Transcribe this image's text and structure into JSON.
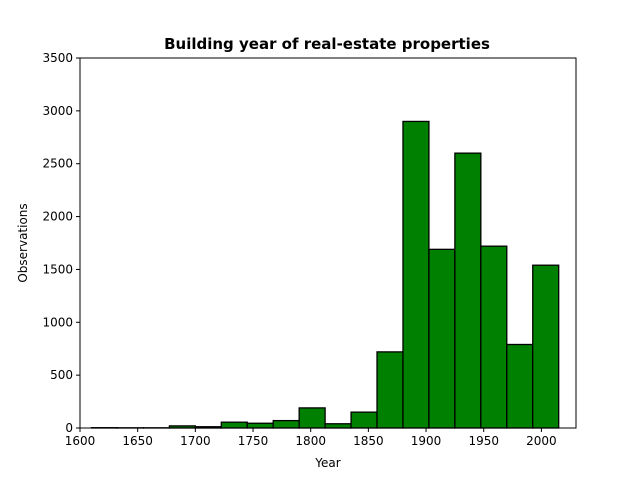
{
  "chart_data": {
    "type": "bar",
    "title": "Building year of real-estate properties",
    "xlabel": "Year",
    "ylabel": "Observations",
    "xlim": [
      1600,
      2030
    ],
    "ylim": [
      0,
      3500
    ],
    "xticks": [
      1600,
      1650,
      1700,
      1750,
      1800,
      1850,
      1900,
      1950,
      2000
    ],
    "yticks": [
      0,
      500,
      1000,
      1500,
      2000,
      2500,
      3000,
      3500
    ],
    "bar_color": "#008000",
    "edge_color": "#000000",
    "grid": false,
    "bins": [
      {
        "x0": 1610.0,
        "x1": 1632.5,
        "value": 3
      },
      {
        "x0": 1632.5,
        "x1": 1655.0,
        "value": 2
      },
      {
        "x0": 1655.0,
        "x1": 1677.5,
        "value": 2
      },
      {
        "x0": 1677.5,
        "x1": 1700.0,
        "value": 20
      },
      {
        "x0": 1700.0,
        "x1": 1722.5,
        "value": 12
      },
      {
        "x0": 1722.5,
        "x1": 1745.0,
        "value": 55
      },
      {
        "x0": 1745.0,
        "x1": 1767.5,
        "value": 45
      },
      {
        "x0": 1767.5,
        "x1": 1790.0,
        "value": 70
      },
      {
        "x0": 1790.0,
        "x1": 1812.5,
        "value": 190
      },
      {
        "x0": 1812.5,
        "x1": 1835.0,
        "value": 40
      },
      {
        "x0": 1835.0,
        "x1": 1857.5,
        "value": 150
      },
      {
        "x0": 1857.5,
        "x1": 1880.0,
        "value": 720
      },
      {
        "x0": 1880.0,
        "x1": 1902.5,
        "value": 2900
      },
      {
        "x0": 1902.5,
        "x1": 1925.0,
        "value": 1690
      },
      {
        "x0": 1925.0,
        "x1": 1947.5,
        "value": 2600
      },
      {
        "x0": 1947.5,
        "x1": 1970.0,
        "value": 1720
      },
      {
        "x0": 1970.0,
        "x1": 1992.5,
        "value": 790
      },
      {
        "x0": 1992.5,
        "x1": 2015.0,
        "value": 1540
      }
    ]
  }
}
